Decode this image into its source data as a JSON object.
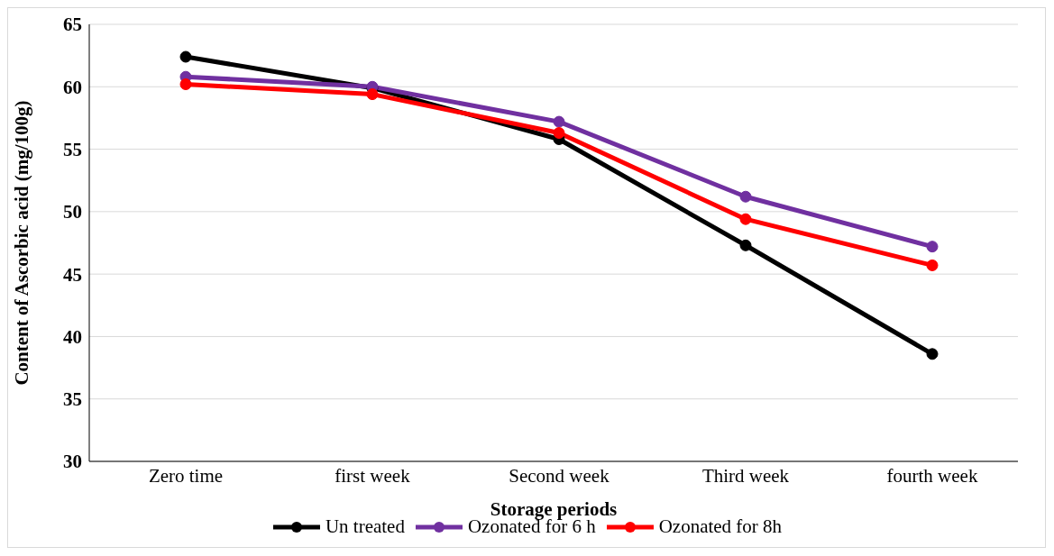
{
  "chart_data": {
    "type": "line",
    "xlabel": "Storage periods",
    "ylabel": "Content of Ascorbic acid (mg/100g)",
    "categories": [
      "Zero time",
      "first week",
      "Second week",
      "Third week",
      "fourth week"
    ],
    "series": [
      {
        "name": "Un treated",
        "color": "#000000",
        "values": [
          62.4,
          59.9,
          55.8,
          47.3,
          38.6
        ]
      },
      {
        "name": "Ozonated for 6 h",
        "color": "#7030a0",
        "values": [
          60.8,
          60.0,
          57.2,
          51.2,
          47.2
        ]
      },
      {
        "name": "Ozonated for 8h",
        "color": "#ff0000",
        "values": [
          60.2,
          59.4,
          56.3,
          49.4,
          45.7
        ]
      }
    ],
    "ylim": [
      30,
      65
    ],
    "yticks": [
      30,
      35,
      40,
      45,
      50,
      55,
      60,
      65
    ],
    "grid": "y",
    "legend": "bottom",
    "marker": "circle",
    "line_style": "solid"
  }
}
